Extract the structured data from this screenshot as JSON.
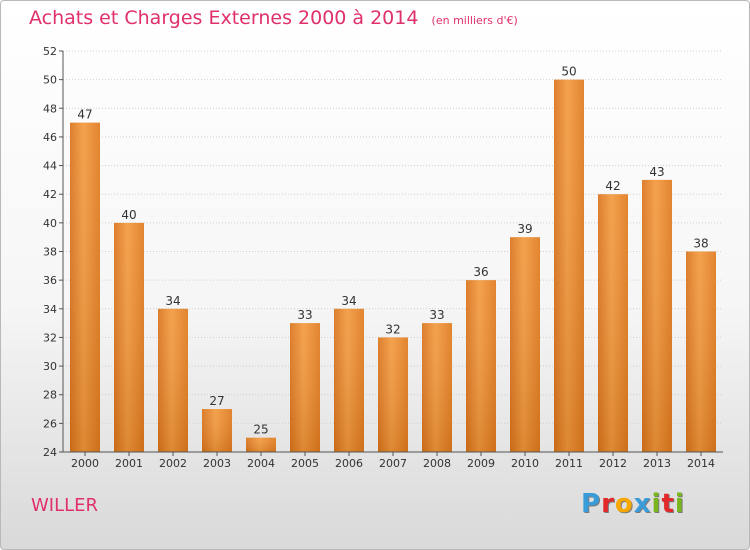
{
  "chart_data": {
    "type": "bar",
    "title": "Achats et Charges Externes 2000 à 2014",
    "subtitle": "(en milliers d'€)",
    "categories": [
      "2000",
      "2001",
      "2002",
      "2003",
      "2004",
      "2005",
      "2006",
      "2007",
      "2008",
      "2009",
      "2010",
      "2011",
      "2012",
      "2013",
      "2014"
    ],
    "values": [
      47,
      40,
      34,
      27,
      25,
      33,
      34,
      32,
      33,
      36,
      39,
      50,
      42,
      43,
      38
    ],
    "ylim": [
      24,
      52
    ],
    "yticks": [
      24,
      26,
      28,
      30,
      32,
      34,
      36,
      38,
      40,
      42,
      44,
      46,
      48,
      50,
      52
    ],
    "grid": true,
    "legend": "none",
    "bar_color": "#f28c28"
  },
  "footer": {
    "commune": "WILLER"
  },
  "brand": {
    "letters": [
      "P",
      "r",
      "o",
      "x",
      "i",
      "t",
      "i"
    ],
    "colors": [
      "#3a9bd9",
      "#e2282b",
      "#f6a800",
      "#3a9bd9",
      "#79b51c",
      "#e2282b",
      "#79b51c"
    ]
  }
}
